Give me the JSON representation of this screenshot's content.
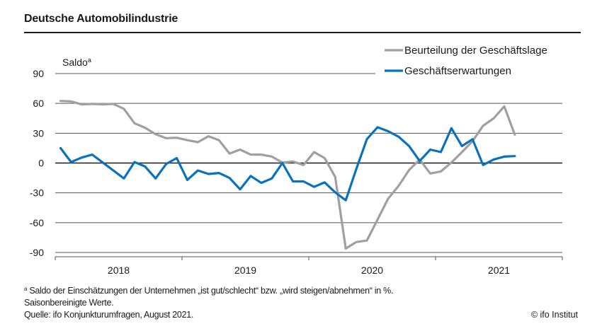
{
  "title": "Deutsche Automobilindustrie",
  "y_unit_label": "Saldo",
  "y_unit_superscript": "a",
  "footnote": {
    "marker": "a",
    "text": "Saldo der Einschätzungen der Unternehmen „ist gut/schlecht“ bzw. „wird steigen/abnehmen“ in %.",
    "line2": "Saisonbereinigte Werte.",
    "source": "Quelle: ifo Konjunkturumfragen, August 2021.",
    "copyright": "© ifo Institut"
  },
  "chart_data": {
    "type": "line",
    "title": "Deutsche Automobilindustrie",
    "xlabel": "",
    "ylabel": "Saldo",
    "ylim": [
      -90,
      90
    ],
    "yticks": [
      90,
      60,
      30,
      0,
      -30,
      -60,
      -90
    ],
    "ytick_labels": [
      "90",
      "60",
      "30",
      "0",
      "-30",
      "-60",
      "-90"
    ],
    "x_years": [
      "2018",
      "2019",
      "2020",
      "2021"
    ],
    "x_start": "2018-01",
    "x_range_months": 48,
    "frequency": "monthly",
    "grid": true,
    "legend_position": "top-right",
    "series": [
      {
        "name": "Beurteilung der Geschäftslage",
        "color": "#a0a0a0",
        "values": [
          62.5,
          62,
          59,
          59.5,
          59,
          59.5,
          54.5,
          40,
          35.5,
          29,
          25,
          25.5,
          23,
          21,
          27,
          23,
          9.5,
          13.5,
          8.5,
          8.5,
          6.5,
          0.5,
          1.5,
          -2,
          11,
          5,
          -14,
          -86,
          -79.5,
          -78,
          -57,
          -36,
          -23,
          -7,
          3.5,
          -10.5,
          -8.5,
          0.5,
          11,
          22,
          37.5,
          45,
          57,
          28.5
        ]
      },
      {
        "name": "Geschäftserwartungen",
        "color": "#0a72bb",
        "values": [
          15,
          1,
          5.5,
          8.5,
          0.5,
          -7.5,
          -15.5,
          1,
          -3.5,
          -15.5,
          -1,
          5,
          -17,
          -7.5,
          -11,
          -10,
          -15,
          -26.5,
          -13,
          -20,
          -15.5,
          0,
          -18.5,
          -18.5,
          -24,
          -19.5,
          -29.5,
          -37.5,
          -6,
          24,
          36,
          32,
          26.5,
          17,
          2,
          13.5,
          11,
          35,
          17,
          24,
          -2,
          3.5,
          6.5,
          7
        ]
      }
    ]
  }
}
